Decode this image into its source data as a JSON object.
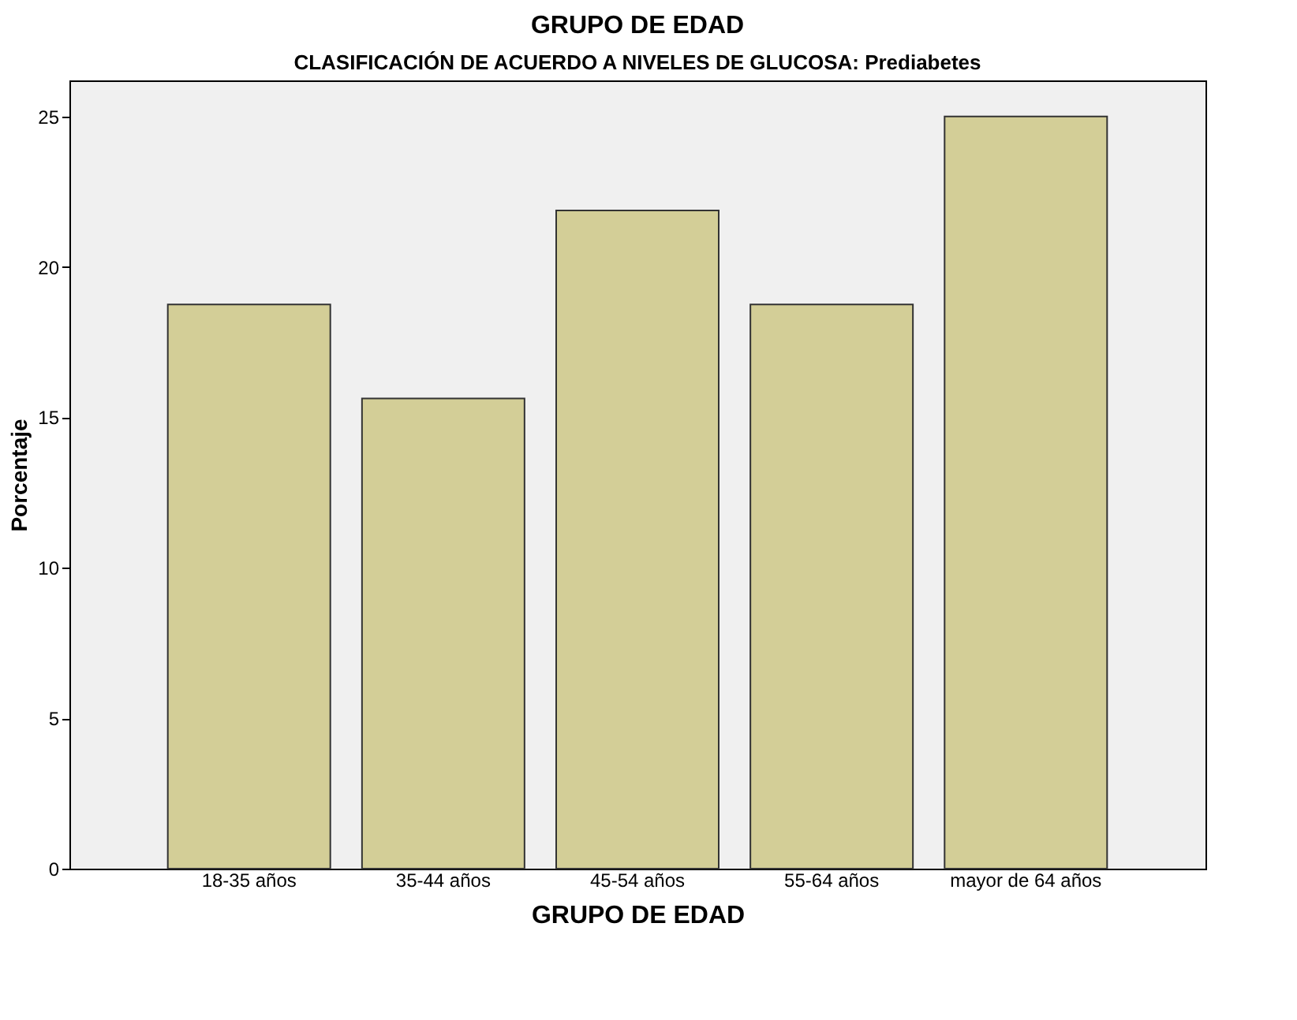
{
  "chart_data": {
    "type": "bar",
    "title": "GRUPO DE EDAD",
    "subtitle": "CLASIFICACIÓN DE ACUERDO A NIVELES DE GLUCOSA: Prediabetes",
    "xlabel": "GRUPO DE EDAD",
    "ylabel": "Porcentaje",
    "categories": [
      "18-35 años",
      "35-44 años",
      "45-54 años",
      "55-64 años",
      "mayor de 64 años"
    ],
    "values": [
      18.75,
      15.63,
      21.88,
      18.75,
      25.0
    ],
    "color": "#d3ce97",
    "ylim": [
      0,
      26.2
    ],
    "yticks": [
      0,
      5,
      10,
      15,
      20,
      25
    ],
    "grid": false
  }
}
